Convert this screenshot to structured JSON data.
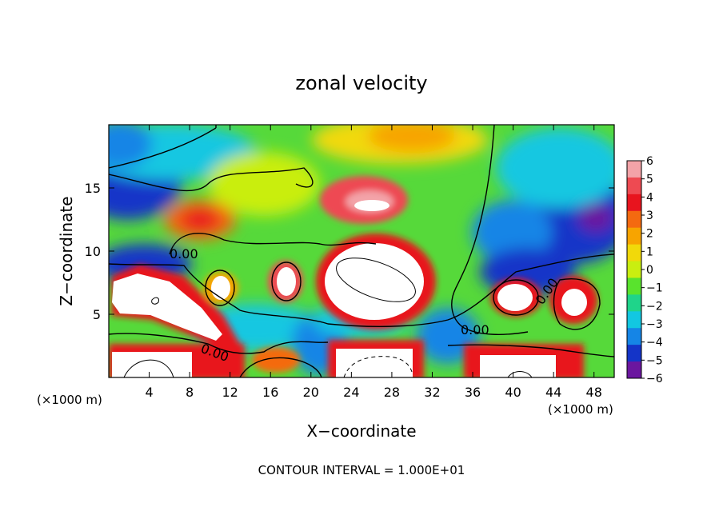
{
  "chart_data": {
    "type": "heatmap",
    "title": "zonal velocity",
    "xlabel": "X−coordinate",
    "ylabel": "Z−coordinate",
    "x_unit_left": "(×1000 m)",
    "x_unit_right": "(×1000 m)",
    "footer": "CONTOUR INTERVAL = 1.000E+01",
    "xlim": [
      0,
      50
    ],
    "ylim": [
      0,
      20
    ],
    "x_ticks": [
      "4",
      "8",
      "12",
      "16",
      "20",
      "24",
      "28",
      "32",
      "36",
      "40",
      "44",
      "48"
    ],
    "y_ticks": [
      "5",
      "10",
      "15"
    ],
    "colorbar": {
      "range": [
        -6,
        6
      ],
      "tick_labels": [
        "6",
        "5",
        "4",
        "3",
        "2",
        "1",
        "0",
        "−1",
        "−2",
        "−3",
        "−4",
        "−5",
        "−6"
      ],
      "colors": [
        "#f3a3a8",
        "#ee4a52",
        "#e8141e",
        "#f46a10",
        "#f7a400",
        "#f1d90a",
        "#c9ee10",
        "#59e32d",
        "#1fd48a",
        "#12c7e1",
        "#1585e6",
        "#1434c8",
        "#6b169f"
      ]
    },
    "contour_labels": [
      "0.00",
      "0.00",
      "0.00",
      "0.00"
    ]
  },
  "colors": {
    "background": "#55d83a",
    "saturated_high": "#ffffff"
  }
}
